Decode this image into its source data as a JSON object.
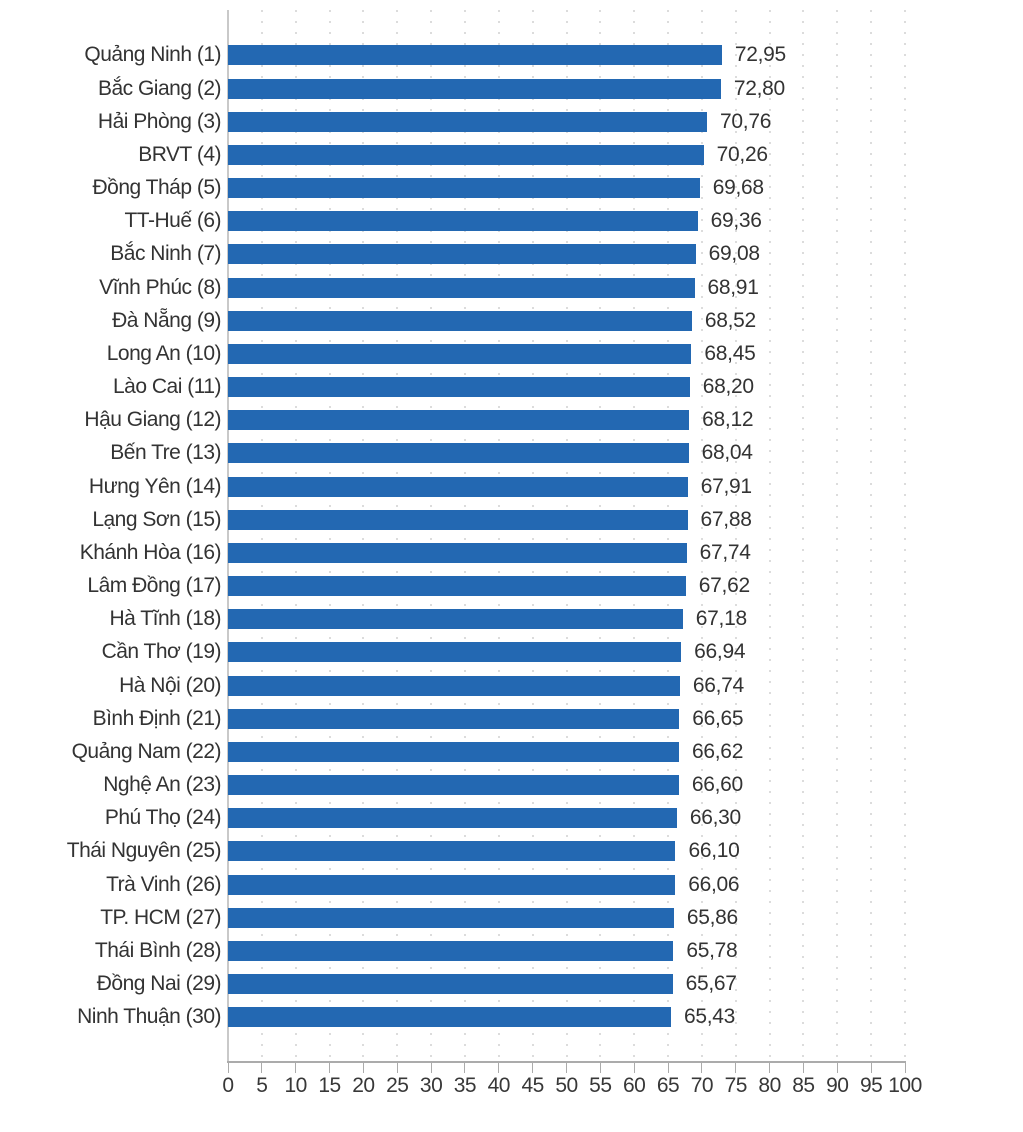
{
  "chart_data": {
    "type": "bar",
    "orientation": "horizontal",
    "title": "",
    "categories": [
      "Quảng Ninh (1)",
      "Bắc Giang (2)",
      "Hải Phòng (3)",
      "BRVT (4)",
      "Đồng Tháp (5)",
      "TT-Huế (6)",
      "Bắc Ninh (7)",
      "Vĩnh Phúc (8)",
      "Đà Nẵng (9)",
      "Long An (10)",
      "Lào Cai (11)",
      "Hậu Giang (12)",
      "Bến Tre (13)",
      "Hưng Yên (14)",
      "Lạng Sơn (15)",
      "Khánh Hòa (16)",
      "Lâm Đồng (17)",
      "Hà Tĩnh (18)",
      "Cần Thơ (19)",
      "Hà Nội (20)",
      "Bình Định (21)",
      "Quảng Nam (22)",
      "Nghệ An (23)",
      "Phú Thọ (24)",
      "Thái Nguyên (25)",
      "Trà Vinh (26)",
      "TP. HCM (27)",
      "Thái Bình (28)",
      "Đồng Nai (29)",
      "Ninh Thuận (30)"
    ],
    "values": [
      72.95,
      72.8,
      70.76,
      70.26,
      69.68,
      69.36,
      69.08,
      68.91,
      68.52,
      68.45,
      68.2,
      68.12,
      68.04,
      67.91,
      67.88,
      67.74,
      67.62,
      67.18,
      66.94,
      66.74,
      66.65,
      66.62,
      66.6,
      66.3,
      66.1,
      66.06,
      65.86,
      65.78,
      65.67,
      65.43
    ],
    "value_labels": [
      "72,95",
      "72,80",
      "70,76",
      "70,26",
      "69,68",
      "69,36",
      "69,08",
      "68,91",
      "68,52",
      "68,45",
      "68,20",
      "68,12",
      "68,04",
      "67,91",
      "67,88",
      "67,74",
      "67,62",
      "67,18",
      "66,94",
      "66,74",
      "66,65",
      "66,62",
      "66,60",
      "66,30",
      "66,10",
      "66,06",
      "65,86",
      "65,78",
      "65,67",
      "65,43"
    ],
    "xlim": [
      0,
      100
    ],
    "xticks": [
      0,
      5,
      10,
      15,
      20,
      25,
      30,
      35,
      40,
      45,
      50,
      55,
      60,
      65,
      70,
      75,
      80,
      85,
      90,
      95,
      100
    ],
    "grid": "vertical-dotted",
    "legend": "none",
    "bar_color": "#2368B2",
    "text_color": "#333333",
    "axis_color": "#ABABAB",
    "gridline_color": "#DCDCDC"
  }
}
